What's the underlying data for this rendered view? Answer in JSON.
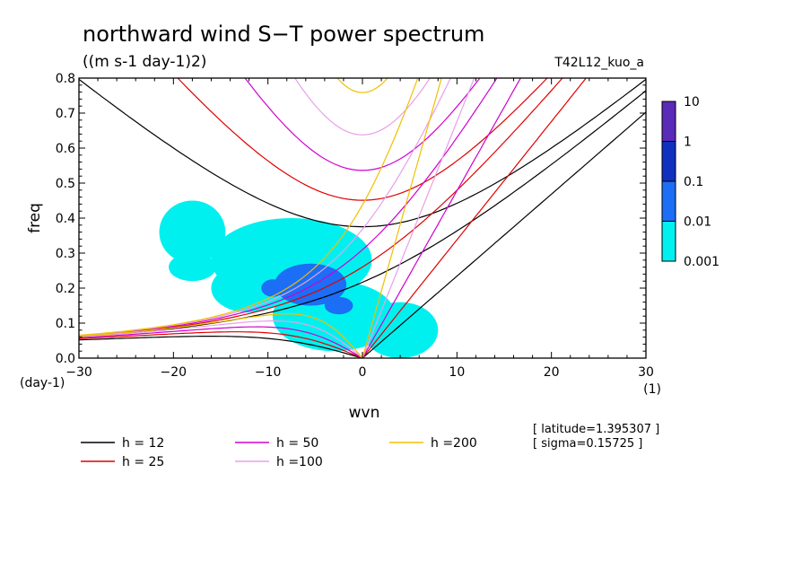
{
  "chart_data": {
    "type": "heatmap",
    "title": "northward wind S−T power spectrum",
    "subtitle": "((m s-1 day-1)2)",
    "run_label": "T42L12_kuo_a",
    "xlabel": "wvn",
    "ylabel": "freq",
    "x_unit": "(1)",
    "y_unit": "(day-1)",
    "xlim": [
      -30,
      30
    ],
    "ylim": [
      0,
      0.8
    ],
    "xticks": [
      -30,
      -20,
      -10,
      0,
      10,
      20,
      30
    ],
    "xtick_labels": [
      "−30",
      "−20",
      "−10",
      "0",
      "10",
      "20",
      "30"
    ],
    "yticks": [
      0,
      0.1,
      0.2,
      0.3,
      0.4,
      0.5,
      0.6,
      0.7,
      0.8
    ],
    "ytick_labels": [
      "0.0",
      "0.1",
      "0.2",
      "0.3",
      "0.4",
      "0.5",
      "0.6",
      "0.7",
      "0.8"
    ],
    "colorbar": {
      "labels": [
        "10",
        "1",
        "0.1",
        "0.01",
        "0.001"
      ],
      "colors": [
        "#5a2ab8",
        "#1030c0",
        "#1b6ef5",
        "#00f0f0"
      ]
    },
    "shaded_regions": [
      {
        "level": "0.001",
        "color": "#00f0f0",
        "center": [
          -7.5,
          0.28
        ],
        "radius": [
          8.5,
          0.12
        ]
      },
      {
        "level": "0.001",
        "color": "#00f0f0",
        "center": [
          -18,
          0.36
        ],
        "radius": [
          3.5,
          0.09
        ]
      },
      {
        "level": "0.001",
        "color": "#00f0f0",
        "center": [
          -3,
          0.12
        ],
        "radius": [
          6.5,
          0.1
        ]
      },
      {
        "level": "0.001",
        "color": "#00f0f0",
        "center": [
          4,
          0.08
        ],
        "radius": [
          4,
          0.08
        ]
      },
      {
        "level": "0.001",
        "color": "#00f0f0",
        "center": [
          -12,
          0.2
        ],
        "radius": [
          4,
          0.07
        ]
      },
      {
        "level": "0.001",
        "color": "#00f0f0",
        "center": [
          -18,
          0.26
        ],
        "radius": [
          2.5,
          0.04
        ]
      },
      {
        "level": "0.01",
        "color": "#1b6ef5",
        "center": [
          -5.5,
          0.21
        ],
        "radius": [
          3.8,
          0.06
        ]
      },
      {
        "level": "0.01",
        "color": "#1b6ef5",
        "center": [
          -2.5,
          0.15
        ],
        "radius": [
          1.5,
          0.025
        ]
      },
      {
        "level": "0.01",
        "color": "#1b6ef5",
        "center": [
          -9.5,
          0.2
        ],
        "radius": [
          1.2,
          0.025
        ]
      }
    ],
    "series": [
      {
        "name": "h = 12",
        "h": 12,
        "color": "#000000"
      },
      {
        "name": "h = 25",
        "h": 25,
        "color": "#e00000"
      },
      {
        "name": "h = 50",
        "h": 50,
        "color": "#d000d0"
      },
      {
        "name": "h =100",
        "h": 100,
        "color": "#e8a0e8"
      },
      {
        "name": "h =200",
        "h": 200,
        "color": "#f0c000"
      }
    ],
    "annotations": [
      "[ latitude=1.395307 ]",
      "[ sigma=0.15725 ]"
    ]
  }
}
